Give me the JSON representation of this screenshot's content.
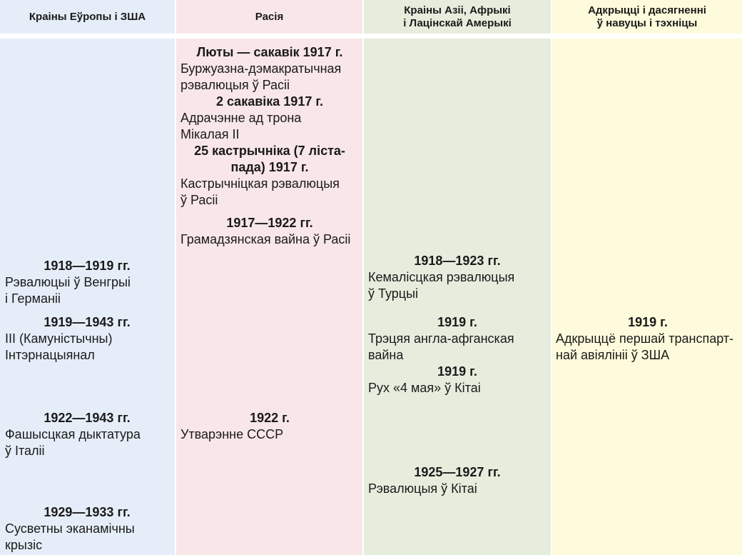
{
  "columns": [
    {
      "title": "Краіны Еўропы і ЗША"
    },
    {
      "title": "Расія"
    },
    {
      "title": "Краіны Азіі, Афрыкі\nі Лацінскай Амерыкі"
    },
    {
      "title": "Адкрыцці і дасягненні\nў навуцы і тэхніцы"
    }
  ],
  "europe": [
    {
      "date": "1918—1919 гг.",
      "text": "Рэвалюцыі ў Венгрыі\nі Германіі"
    },
    {
      "date": "1919—1943 гг.",
      "text": "ІІІ (Камуністычны)\nІнтэрнацыянал"
    },
    {
      "date": "1922—1943 гг.",
      "text": "Фашысцкая дыктатура\nў Італіі"
    },
    {
      "date": "1929—1933 гг.",
      "text": "Сусветны эканамічны\nкрызіс"
    }
  ],
  "russia": [
    {
      "date": "Люты — сакавік 1917 г.",
      "text": "Буржуазна-дэмакратычная\nрэвалюцыя ў Расіі"
    },
    {
      "date": "2 сакавіка 1917 г.",
      "text": "Адрачэнне ад трона\nМікалая ІІ"
    },
    {
      "date": "25 кастрычніка (7 ліста-\nпада) 1917 г.",
      "text": "Кастрычніцкая рэвалюцыя\nў Расіі"
    },
    {
      "date": "1917—1922 гг.",
      "text": "Грамадзянская вайна ў Расіі"
    },
    {
      "date": "1922 г.",
      "text": "Утварэнне СССР"
    }
  ],
  "asia": [
    {
      "date": "1918—1923 гг.",
      "text": "Кемалісцкая рэвалюцыя\nў Турцыі"
    },
    {
      "date": "1919 г.",
      "text": "Трэцяя англа-афганская\nвайна"
    },
    {
      "date": "1919 г.",
      "text": "Рух «4 мая» ў Кітаі"
    },
    {
      "date": "1925—1927 гг.",
      "text": "Рэвалюцыя ў Кітаі"
    }
  ],
  "science": [
    {
      "date": "1919 г.",
      "text": "Адкрыццё першай транспарт-\nнай авіялініі ў ЗША"
    }
  ]
}
